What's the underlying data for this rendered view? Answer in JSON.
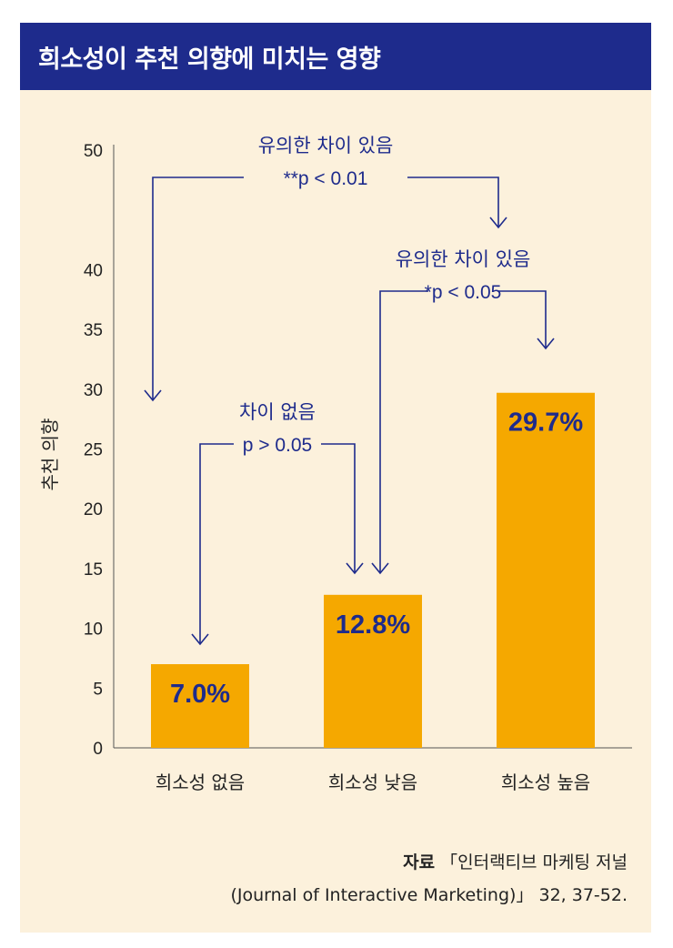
{
  "title": "희소성이 추천 의향에 미치는 영향",
  "chart_data": {
    "type": "bar",
    "categories": [
      "희소성 없음",
      "희소성 낮음",
      "희소성 높음"
    ],
    "values": [
      7.0,
      12.8,
      29.7
    ],
    "value_labels": [
      "7.0%",
      "12.8%",
      "29.7%"
    ],
    "ylabel": "추천 의향",
    "xlabel": "",
    "ylim": [
      0,
      50
    ],
    "yticks": [
      0,
      5,
      10,
      15,
      20,
      25,
      30,
      35,
      40,
      50
    ],
    "grid": false,
    "bar_color": "#f5a800",
    "label_color": "#1e2b8c",
    "annotations": [
      {
        "from": "희소성 없음",
        "to": "희소성 높음",
        "line1": "유의한 차이 있음",
        "line2": "**p < 0.01"
      },
      {
        "from": "희소성 낮음",
        "to": "희소성 높음",
        "line1": "유의한 차이 있음",
        "line2": "*p < 0.05"
      },
      {
        "from": "희소성 없음",
        "to": "희소성 낮음",
        "line1": "차이 없음",
        "line2": "p > 0.05"
      }
    ]
  },
  "source": {
    "label": "자료",
    "text1": "「인터랙티브 마케팅 저널",
    "text2": "(Journal of Interactive Marketing)」 32, 37-52."
  },
  "colors": {
    "title_bg": "#1e2b8c",
    "panel_bg": "#fcf1dc",
    "accent": "#f5a800"
  }
}
